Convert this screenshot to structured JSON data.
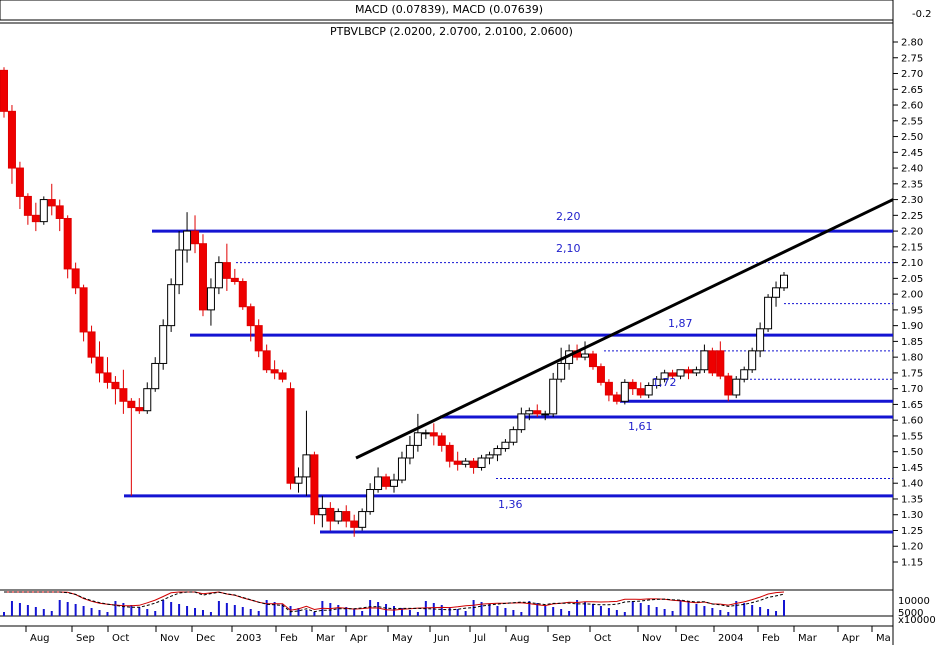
{
  "chart_data": {
    "type": "candlestick",
    "macd_header": "MACD (0.07839), MACD (0.07639)",
    "macd_tick": "-0.2",
    "title": "PTBVLBCP (2.0200, 2.0700, 2.0100, 2.0600)",
    "y_ticks": [
      "2.80",
      "2.75",
      "2.70",
      "2.65",
      "2.60",
      "2.55",
      "2.50",
      "2.45",
      "2.40",
      "2.35",
      "2.30",
      "2.25",
      "2.20",
      "2.15",
      "2.10",
      "2.05",
      "2.00",
      "1.95",
      "1.90",
      "1.85",
      "1.80",
      "1.75",
      "1.70",
      "1.65",
      "1.60",
      "1.55",
      "1.50",
      "1.45",
      "1.40",
      "1.35",
      "1.30",
      "1.25",
      "1.20",
      "1.15"
    ],
    "ylim": [
      1.1,
      2.85
    ],
    "x_labels": [
      "Aug",
      "Sep",
      "Oct",
      "Nov",
      "Dec",
      "2003",
      "Feb",
      "Mar",
      "Apr",
      "May",
      "Jun",
      "Jul",
      "Aug",
      "Sep",
      "Oct",
      "Nov",
      "Dec",
      "2004",
      "Feb",
      "Mar",
      "Apr",
      "Ma"
    ],
    "level_labels": [
      "2,20",
      "2,10",
      "1,87",
      "1,72",
      "1,61",
      "1,36"
    ],
    "levels": {
      "solid": [
        2.2,
        1.87,
        1.66,
        1.61,
        1.36,
        1.245
      ],
      "dotted": [
        2.1,
        1.97,
        1.82,
        1.73,
        1.415
      ]
    },
    "trendline": {
      "from": [
        "2003-Apr",
        1.48
      ],
      "to": [
        "2004-May",
        2.3
      ]
    },
    "volume_ticks": [
      "10000",
      "5000",
      "x10000"
    ],
    "candles": [
      [
        2.71,
        2.72,
        2.56,
        2.58
      ],
      [
        2.58,
        2.6,
        2.35,
        2.4
      ],
      [
        2.4,
        2.42,
        2.27,
        2.31
      ],
      [
        2.31,
        2.32,
        2.22,
        2.25
      ],
      [
        2.25,
        2.29,
        2.2,
        2.23
      ],
      [
        2.23,
        2.31,
        2.22,
        2.3
      ],
      [
        2.3,
        2.35,
        2.25,
        2.28
      ],
      [
        2.28,
        2.3,
        2.2,
        2.24
      ],
      [
        2.24,
        2.25,
        2.05,
        2.08
      ],
      [
        2.08,
        2.1,
        2.0,
        2.02
      ],
      [
        2.02,
        2.03,
        1.85,
        1.88
      ],
      [
        1.88,
        1.9,
        1.78,
        1.8
      ],
      [
        1.8,
        1.85,
        1.72,
        1.75
      ],
      [
        1.75,
        1.8,
        1.7,
        1.72
      ],
      [
        1.72,
        1.74,
        1.65,
        1.7
      ],
      [
        1.7,
        1.76,
        1.62,
        1.66
      ],
      [
        1.66,
        1.67,
        1.36,
        1.64
      ],
      [
        1.64,
        1.67,
        1.62,
        1.63
      ],
      [
        1.63,
        1.72,
        1.62,
        1.7
      ],
      [
        1.7,
        1.8,
        1.69,
        1.78
      ],
      [
        1.78,
        1.92,
        1.76,
        1.9
      ],
      [
        1.9,
        2.05,
        1.88,
        2.03
      ],
      [
        2.03,
        2.2,
        2.0,
        2.14
      ],
      [
        2.14,
        2.26,
        2.1,
        2.2
      ],
      [
        2.2,
        2.25,
        2.13,
        2.16
      ],
      [
        2.16,
        2.19,
        1.93,
        1.95
      ],
      [
        1.95,
        2.05,
        1.9,
        2.02
      ],
      [
        2.02,
        2.12,
        2.0,
        2.1
      ],
      [
        2.1,
        2.16,
        2.01,
        2.05
      ],
      [
        2.05,
        2.08,
        2.03,
        2.04
      ],
      [
        2.04,
        2.05,
        1.95,
        1.96
      ],
      [
        1.96,
        1.97,
        1.85,
        1.9
      ],
      [
        1.9,
        1.92,
        1.8,
        1.82
      ],
      [
        1.82,
        1.84,
        1.75,
        1.76
      ],
      [
        1.76,
        1.79,
        1.73,
        1.75
      ],
      [
        1.75,
        1.76,
        1.72,
        1.73
      ],
      [
        1.7,
        1.72,
        1.38,
        1.4
      ],
      [
        1.4,
        1.45,
        1.37,
        1.42
      ],
      [
        1.42,
        1.63,
        1.36,
        1.49
      ],
      [
        1.49,
        1.5,
        1.27,
        1.3
      ],
      [
        1.3,
        1.36,
        1.26,
        1.32
      ],
      [
        1.32,
        1.34,
        1.25,
        1.28
      ],
      [
        1.28,
        1.32,
        1.27,
        1.31
      ],
      [
        1.31,
        1.33,
        1.26,
        1.28
      ],
      [
        1.28,
        1.3,
        1.23,
        1.26
      ],
      [
        1.26,
        1.32,
        1.25,
        1.31
      ],
      [
        1.31,
        1.4,
        1.3,
        1.38
      ],
      [
        1.38,
        1.45,
        1.37,
        1.42
      ],
      [
        1.42,
        1.43,
        1.38,
        1.39
      ],
      [
        1.39,
        1.43,
        1.37,
        1.41
      ],
      [
        1.41,
        1.5,
        1.4,
        1.48
      ],
      [
        1.48,
        1.55,
        1.46,
        1.52
      ],
      [
        1.52,
        1.62,
        1.5,
        1.56
      ],
      [
        1.56,
        1.57,
        1.54,
        1.56
      ],
      [
        1.56,
        1.59,
        1.52,
        1.55
      ],
      [
        1.55,
        1.56,
        1.5,
        1.52
      ],
      [
        1.52,
        1.53,
        1.45,
        1.47
      ],
      [
        1.47,
        1.5,
        1.44,
        1.46
      ],
      [
        1.46,
        1.48,
        1.45,
        1.47
      ],
      [
        1.47,
        1.48,
        1.43,
        1.45
      ],
      [
        1.45,
        1.49,
        1.44,
        1.48
      ],
      [
        1.48,
        1.5,
        1.46,
        1.49
      ],
      [
        1.49,
        1.52,
        1.47,
        1.51
      ],
      [
        1.51,
        1.54,
        1.5,
        1.53
      ],
      [
        1.53,
        1.58,
        1.52,
        1.57
      ],
      [
        1.57,
        1.64,
        1.56,
        1.62
      ],
      [
        1.62,
        1.64,
        1.6,
        1.63
      ],
      [
        1.63,
        1.65,
        1.61,
        1.62
      ],
      [
        1.62,
        1.63,
        1.6,
        1.62
      ],
      [
        1.62,
        1.75,
        1.61,
        1.73
      ],
      [
        1.73,
        1.83,
        1.72,
        1.78
      ],
      [
        1.78,
        1.84,
        1.76,
        1.82
      ],
      [
        1.82,
        1.84,
        1.79,
        1.8
      ],
      [
        1.8,
        1.85,
        1.79,
        1.81
      ],
      [
        1.81,
        1.82,
        1.76,
        1.77
      ],
      [
        1.77,
        1.78,
        1.71,
        1.72
      ],
      [
        1.72,
        1.73,
        1.66,
        1.68
      ],
      [
        1.68,
        1.69,
        1.65,
        1.66
      ],
      [
        1.66,
        1.73,
        1.65,
        1.72
      ],
      [
        1.72,
        1.73,
        1.68,
        1.7
      ],
      [
        1.7,
        1.72,
        1.67,
        1.68
      ],
      [
        1.68,
        1.72,
        1.67,
        1.71
      ],
      [
        1.71,
        1.74,
        1.7,
        1.73
      ],
      [
        1.73,
        1.76,
        1.72,
        1.75
      ],
      [
        1.75,
        1.76,
        1.73,
        1.74
      ],
      [
        1.74,
        1.76,
        1.73,
        1.76
      ],
      [
        1.76,
        1.77,
        1.73,
        1.75
      ],
      [
        1.75,
        1.77,
        1.74,
        1.76
      ],
      [
        1.76,
        1.84,
        1.75,
        1.82
      ],
      [
        1.82,
        1.83,
        1.74,
        1.75
      ],
      [
        1.82,
        1.85,
        1.73,
        1.74
      ],
      [
        1.74,
        1.75,
        1.66,
        1.68
      ],
      [
        1.68,
        1.74,
        1.67,
        1.73
      ],
      [
        1.73,
        1.77,
        1.72,
        1.76
      ],
      [
        1.76,
        1.83,
        1.75,
        1.82
      ],
      [
        1.82,
        1.91,
        1.8,
        1.89
      ],
      [
        1.89,
        2.0,
        1.88,
        1.99
      ],
      [
        1.99,
        2.04,
        1.96,
        2.02
      ],
      [
        2.02,
        2.07,
        2.01,
        2.06
      ]
    ]
  }
}
